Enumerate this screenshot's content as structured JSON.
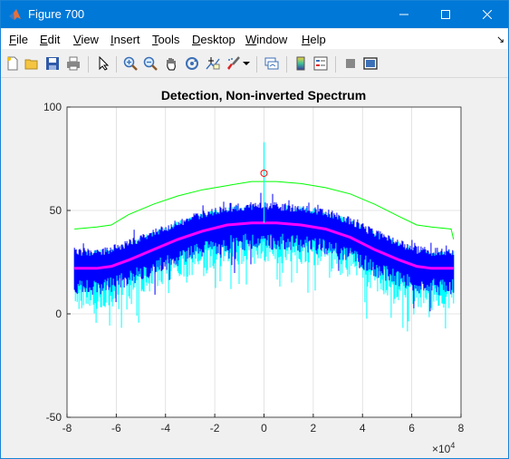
{
  "window": {
    "title": "Figure 700"
  },
  "menu": {
    "items": [
      {
        "label": "File",
        "u": "F",
        "rest": "ile"
      },
      {
        "label": "Edit",
        "u": "E",
        "rest": "dit"
      },
      {
        "label": "View",
        "u": "V",
        "rest": "iew"
      },
      {
        "label": "Insert",
        "u": "I",
        "rest": "nsert"
      },
      {
        "label": "Tools",
        "u": "T",
        "rest": "ools"
      },
      {
        "label": "Desktop",
        "u": "D",
        "rest": "esktop"
      },
      {
        "label": "Window",
        "u": "W",
        "rest": "indow"
      },
      {
        "label": "Help",
        "u": "H",
        "rest": "elp"
      }
    ],
    "dock_arrow": "↘"
  },
  "toolbar": {
    "icons": [
      "new-figure-icon",
      "open-file-icon",
      "save-icon",
      "print-icon",
      "edit-plot-arrow-icon",
      "zoom-in-icon",
      "zoom-out-icon",
      "pan-hand-icon",
      "rotate-3d-icon",
      "data-cursor-icon",
      "brush-icon",
      "brush-dropdown-icon",
      "link-plot-icon",
      "colorbar-icon",
      "legend-icon",
      "hide-plot-tools-icon",
      "show-plot-tools-icon"
    ]
  },
  "chart_data": {
    "type": "line",
    "title": "Detection, Non-inverted Spectrum",
    "xlabel": "",
    "ylabel": "",
    "xlim": [
      -8,
      8
    ],
    "ylim": [
      -50,
      100
    ],
    "x_exponent_label": "×10",
    "x_exponent_power": "4",
    "xticks": [
      "-8",
      "-6",
      "-4",
      "-2",
      "0",
      "2",
      "4",
      "6",
      "8"
    ],
    "yticks": [
      "-50",
      "0",
      "50",
      "100"
    ],
    "xtick_values": [
      -8,
      -6,
      -4,
      -2,
      0,
      2,
      4,
      6,
      8
    ],
    "ytick_values": [
      -50,
      0,
      50,
      100
    ],
    "grid": true,
    "colors": {
      "noise_cyan": "#00ffff",
      "noise_blue": "#0000ff",
      "threshold": "#00ff00",
      "mean": "#ff00ff",
      "marker": "#ff0000",
      "spike": "#00ffff"
    },
    "series": [
      {
        "color": "#00ff00",
        "x": [
          -7.7,
          -6.8,
          -6.2,
          -5.5,
          -4.5,
          -3.5,
          -2.5,
          -1.5,
          -0.5,
          0,
          0.5,
          1.5,
          2.5,
          3.5,
          4.5,
          5.5,
          6.2,
          6.8,
          7.6,
          7.7
        ],
        "y": [
          41,
          42,
          43,
          48,
          53,
          57,
          60,
          62,
          64,
          64,
          64,
          63,
          61,
          58,
          53,
          47,
          43,
          42,
          41,
          36
        ]
      },
      {
        "color": "#ff00ff",
        "x": [
          -7.7,
          -6.8,
          -6.2,
          -5.5,
          -4.5,
          -3.5,
          -2.5,
          -1.5,
          -0.5,
          0,
          0.5,
          1.5,
          2.5,
          3.5,
          4.5,
          5.5,
          6.2,
          6.8,
          7.7
        ],
        "y": [
          22,
          22,
          23,
          26,
          31,
          36,
          40,
          43,
          44,
          44,
          44,
          43,
          41,
          37,
          31,
          26,
          23,
          22,
          22
        ]
      }
    ],
    "marker": {
      "x": 0,
      "y": 68
    },
    "spike": {
      "x": 0,
      "y_top": 83
    }
  }
}
